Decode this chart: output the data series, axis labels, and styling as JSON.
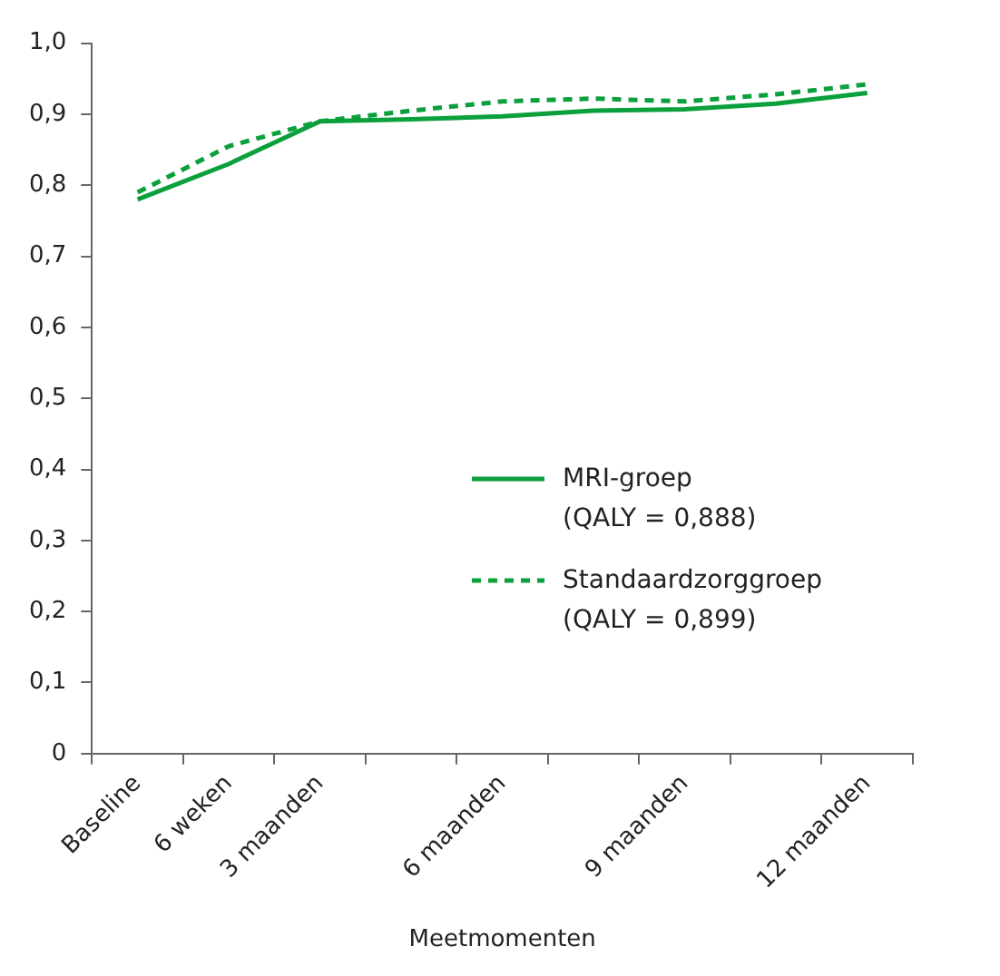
{
  "chart_data": {
    "type": "line",
    "xlabel": "Meetmomenten",
    "categories": [
      "Baseline",
      "6 weken",
      "3 maanden",
      null,
      "6 maanden",
      null,
      "9 maanden",
      null,
      "12 maanden"
    ],
    "series": [
      {
        "name": "MRI-groep (QALY = 0,888)",
        "color": "#0ba03c",
        "line_style": "solid",
        "values": [
          0.78,
          0.83,
          0.89,
          0.893,
          0.897,
          0.905,
          0.907,
          0.915,
          0.93
        ]
      },
      {
        "name": "Standaardzorggroep (QALY = 0,899)",
        "color": "#0ba03c",
        "line_style": "dashed",
        "values": [
          0.79,
          0.855,
          0.89,
          0.905,
          0.918,
          0.922,
          0.918,
          0.928,
          0.942
        ]
      }
    ],
    "ylim": [
      0,
      1
    ],
    "yticks": [
      {
        "value": 0,
        "label": "0"
      },
      {
        "value": 0.1,
        "label": "0,1"
      },
      {
        "value": 0.2,
        "label": "0,2"
      },
      {
        "value": 0.3,
        "label": "0,3"
      },
      {
        "value": 0.4,
        "label": "0,4"
      },
      {
        "value": 0.5,
        "label": "0,5"
      },
      {
        "value": 0.6,
        "label": "0,6"
      },
      {
        "value": 0.7,
        "label": "0,7"
      },
      {
        "value": 0.8,
        "label": "0,8"
      },
      {
        "value": 0.9,
        "label": "0,9"
      },
      {
        "value": 1,
        "label": "1,0"
      }
    ],
    "grid": false,
    "legend": "right",
    "marker": "none"
  }
}
